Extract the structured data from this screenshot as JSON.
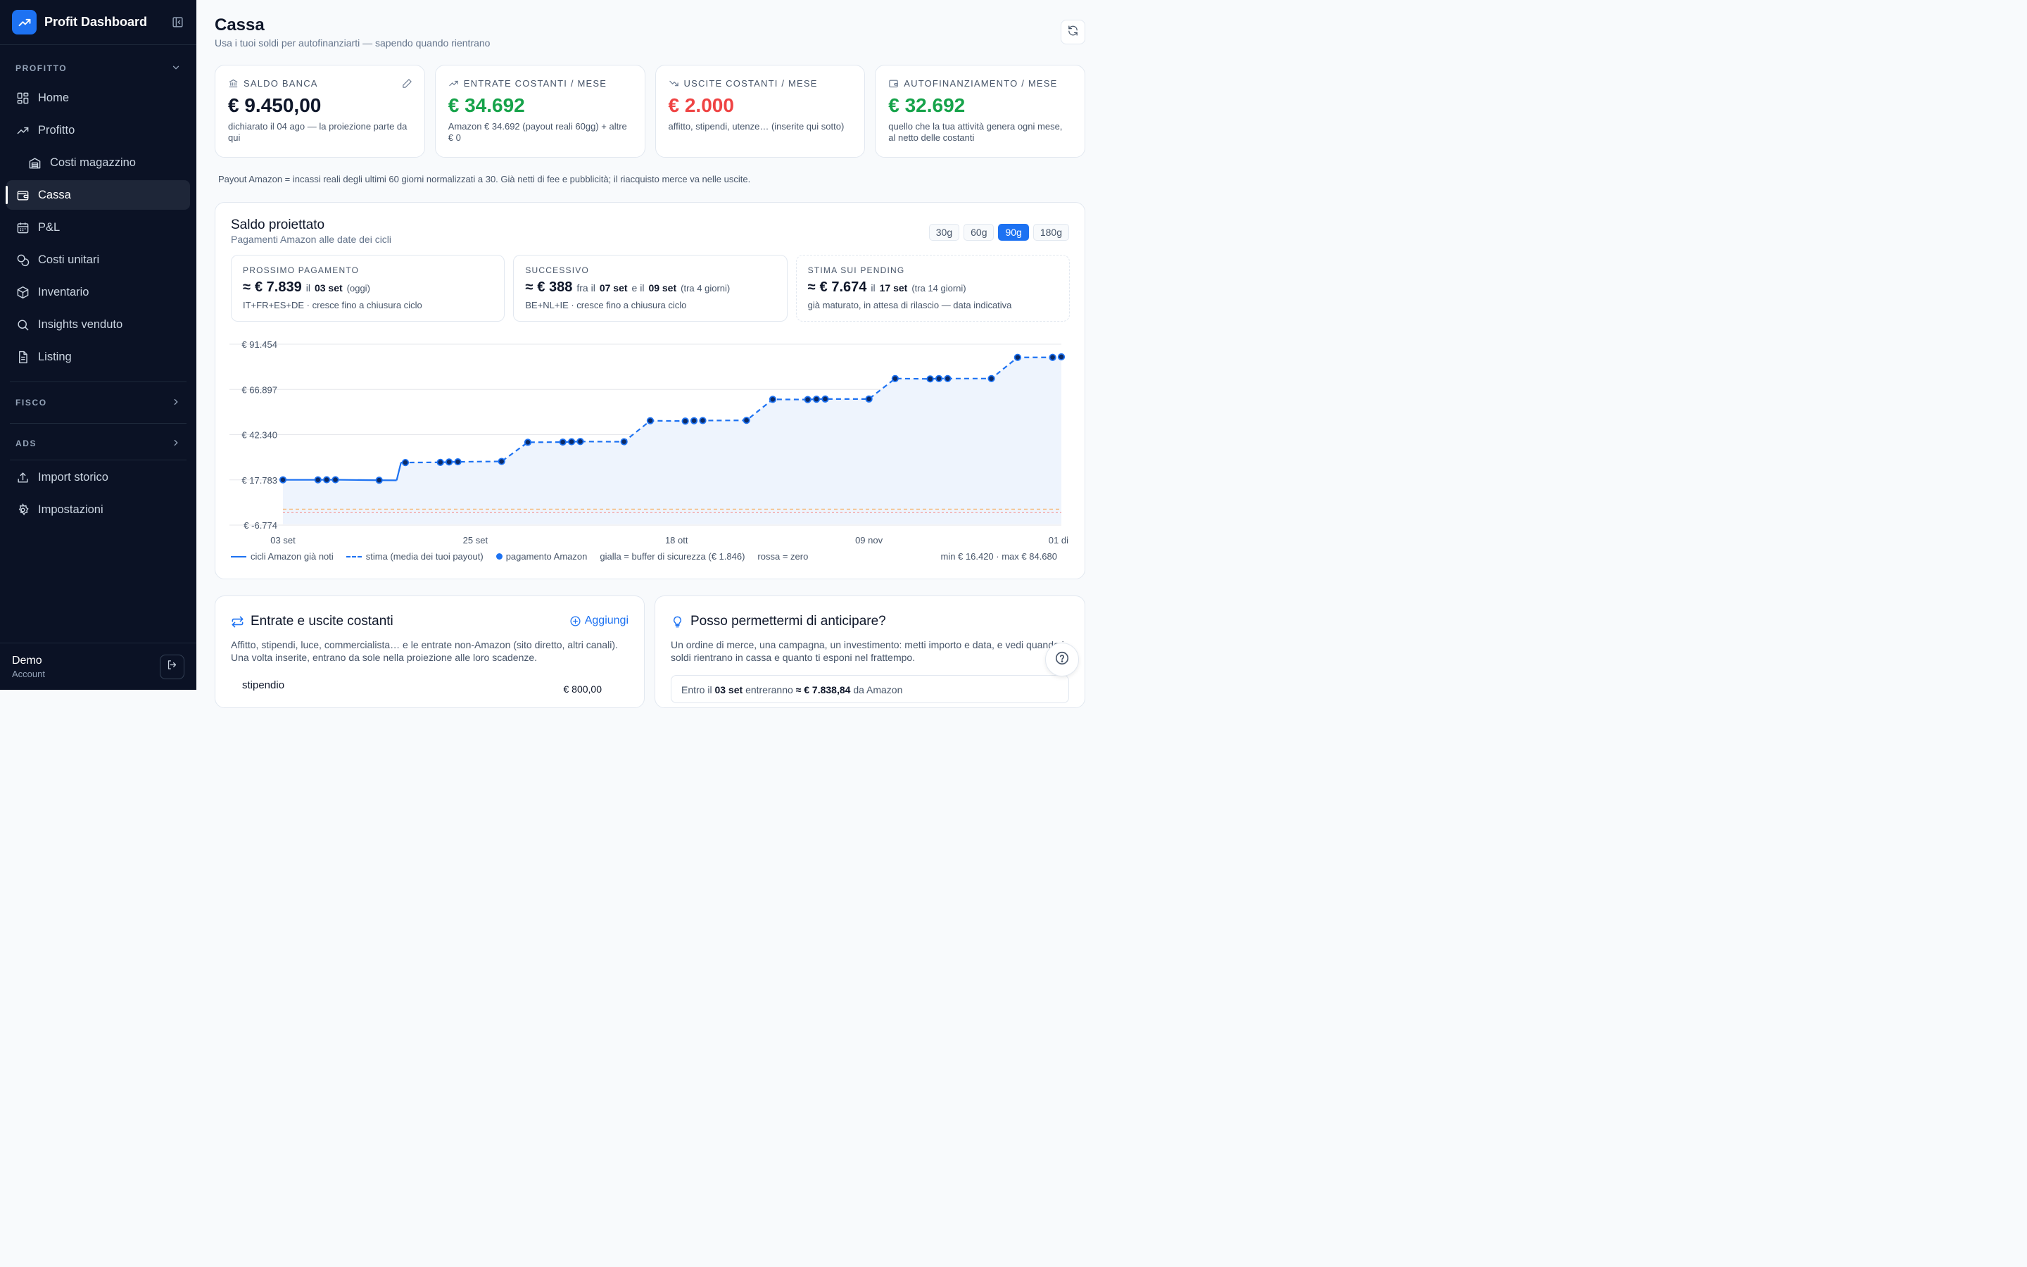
{
  "brand": {
    "title": "Profit Dashboard"
  },
  "sidebar": {
    "sections": [
      {
        "label": "PROFITTO"
      },
      {
        "label": "FISCO"
      },
      {
        "label": "ADS"
      }
    ],
    "items": [
      {
        "label": "Home",
        "icon": "grid-icon"
      },
      {
        "label": "Profitto",
        "icon": "trend-up-icon"
      },
      {
        "label": "Costi magazzino",
        "icon": "warehouse-icon"
      },
      {
        "label": "Cassa",
        "icon": "wallet-icon"
      },
      {
        "label": "P&L",
        "icon": "calendar-icon"
      },
      {
        "label": "Costi unitari",
        "icon": "coins-icon"
      },
      {
        "label": "Inventario",
        "icon": "box-icon"
      },
      {
        "label": "Insights venduto",
        "icon": "search-icon"
      },
      {
        "label": "Listing",
        "icon": "document-icon"
      }
    ],
    "bottom_items": [
      {
        "label": "Import storico",
        "icon": "upload-icon"
      },
      {
        "label": "Impostazioni",
        "icon": "gear-icon"
      }
    ],
    "account": {
      "name": "Demo",
      "role": "Account"
    }
  },
  "page": {
    "title": "Cassa",
    "subtitle": "Usa i tuoi soldi per autofinanziarti — sapendo quando rientrano"
  },
  "kpis": [
    {
      "label": "SALDO BANCA",
      "value": "€ 9.450,00",
      "note": "dichiarato il 04 ago — la proiezione parte da qui",
      "color": "#0f172a"
    },
    {
      "label": "ENTRATE COSTANTI / MESE",
      "value": "€ 34.692",
      "note": "Amazon € 34.692 (payout reali 60gg) + altre € 0",
      "color": "#16a34a"
    },
    {
      "label": "USCITE COSTANTI / MESE",
      "value": "€ 2.000",
      "note": "affitto, stipendi, utenze… (inserite qui sotto)",
      "color": "#ef4444"
    },
    {
      "label": "AUTOFINANZIAMENTO / MESE",
      "value": "€ 32.692",
      "note": "quello che la tua attività genera ogni mese, al netto delle costanti",
      "color": "#16a34a"
    }
  ],
  "footnote": "Payout Amazon = incassi reali degli ultimi 60 giorni normalizzati a 30. Già netti di fee e pubblicità; il riacquisto merce va nelle uscite.",
  "projection": {
    "title": "Saldo proiettato",
    "subtitle": "Pagamenti Amazon alle date dei cicli",
    "ranges": [
      "30g",
      "60g",
      "90g",
      "180g"
    ],
    "active_range": "90g",
    "next_payment": {
      "label": "PROSSIMO PAGAMENTO",
      "approx": "≈",
      "amount": "€ 7.839",
      "prefix": "il",
      "date": "03 set",
      "extra": "(oggi)",
      "note": "IT+FR+ES+DE · cresce fino a chiusura ciclo"
    },
    "following": {
      "label": "SUCCESSIVO",
      "approx": "≈",
      "amount": "€ 388",
      "prefix": "fra il",
      "date1": "07 set",
      "mid": "e il",
      "date2": "09 set",
      "extra": "(tra 4 giorni)",
      "note": "BE+NL+IE · cresce fino a chiusura ciclo"
    },
    "pending": {
      "label": "STIMA SUI PENDING",
      "approx": "≈",
      "amount": "€ 7.674",
      "prefix": "il",
      "date": "17 set",
      "extra": "(tra 14 giorni)",
      "note": "già maturato, in attesa di rilascio — data indicativa"
    },
    "legend": {
      "solid": "cicli Amazon già noti",
      "dashed": "stima (media dei tuoi payout)",
      "dot": "pagamento Amazon",
      "yellow": "gialla = buffer di sicurezza (€ 1.846)",
      "red": "rossa = zero",
      "minmax": "min € 16.420 · max € 84.680"
    }
  },
  "chart_data": {
    "type": "line",
    "x_axis": "days from 03 set",
    "xlim": [
      0,
      89
    ],
    "ylim": [
      -6774,
      91454
    ],
    "ytick_labels": [
      "€ 91.454",
      "€ 66.897",
      "€ 42.340",
      "€ 17.783",
      "€ -6.774"
    ],
    "yticks": [
      91454,
      66897,
      42340,
      17783,
      -6774
    ],
    "xtick_labels": [
      "03 set",
      "25 set",
      "18 ott",
      "09 nov",
      "01 di"
    ],
    "xticks": [
      0,
      22,
      45,
      67,
      89
    ],
    "buffer": 1846,
    "zero": 0,
    "series": [
      {
        "style": "solid",
        "points": [
          [
            0,
            17800
          ],
          [
            4,
            17800
          ],
          [
            5,
            17850
          ],
          [
            6,
            17850
          ],
          [
            11,
            17600
          ],
          [
            13,
            17550
          ]
        ]
      },
      {
        "style": "dashed",
        "points": [
          [
            13.5,
            27200
          ],
          [
            18,
            27300
          ],
          [
            19,
            27500
          ],
          [
            20,
            27600
          ],
          [
            25,
            27800
          ],
          [
            28,
            38200
          ],
          [
            32,
            38300
          ],
          [
            33,
            38500
          ],
          [
            34,
            38600
          ],
          [
            39,
            38500
          ],
          [
            42,
            49900
          ],
          [
            46,
            49700
          ],
          [
            47,
            49900
          ],
          [
            48,
            50000
          ],
          [
            53,
            50100
          ],
          [
            56,
            61500
          ],
          [
            60,
            61400
          ],
          [
            61,
            61600
          ],
          [
            62,
            61700
          ],
          [
            67,
            61700
          ],
          [
            70,
            72800
          ],
          [
            74,
            72600
          ],
          [
            75,
            72800
          ],
          [
            76,
            72800
          ],
          [
            81,
            72800
          ],
          [
            84,
            84300
          ],
          [
            88,
            84300
          ],
          [
            89,
            84600
          ]
        ]
      }
    ],
    "payments": [
      [
        0,
        17800
      ],
      [
        4,
        17800
      ],
      [
        5,
        17850
      ],
      [
        6,
        17850
      ],
      [
        11,
        17600
      ],
      [
        14,
        27200
      ],
      [
        18,
        27300
      ],
      [
        19,
        27500
      ],
      [
        20,
        27600
      ],
      [
        25,
        27800
      ],
      [
        28,
        38200
      ],
      [
        32,
        38300
      ],
      [
        33,
        38500
      ],
      [
        34,
        38600
      ],
      [
        39,
        38500
      ],
      [
        42,
        49900
      ],
      [
        46,
        49700
      ],
      [
        47,
        49900
      ],
      [
        48,
        50000
      ],
      [
        53,
        50100
      ],
      [
        56,
        61500
      ],
      [
        60,
        61400
      ],
      [
        61,
        61600
      ],
      [
        62,
        61700
      ],
      [
        67,
        61700
      ],
      [
        70,
        72800
      ],
      [
        74,
        72600
      ],
      [
        75,
        72800
      ],
      [
        76,
        72800
      ],
      [
        81,
        72800
      ],
      [
        84,
        84300
      ],
      [
        88,
        84300
      ],
      [
        89,
        84600
      ]
    ],
    "colors": {
      "line": "#1d72f2",
      "fill": "#eef4fd",
      "buffer": "#f5b97a",
      "zero": "#f3a0a0",
      "grid": "#e5e7eb"
    }
  },
  "recurring": {
    "title": "Entrate e uscite costanti",
    "add_label": "Aggiungi",
    "description": "Affitto, stipendi, luce, commercialista… e le entrate non-Amazon (sito diretto, altri canali). Una volta inserite, entrano da sole nella proiezione alle loro scadenze.",
    "first_row": "stipendio",
    "first_row_amount": "€ 800,00"
  },
  "anticipate": {
    "title": "Posso permettermi di anticipare?",
    "description": "Un ordine di merce, una campagna, un investimento: metti importo e data, e vedi quando i soldi rientrano in cassa e quanto ti esponi nel frattempo.",
    "info_prefix": "Entro il",
    "info_date": "03 set",
    "info_mid": "entreranno",
    "info_amount": "≈ € 7.838,84",
    "info_suffix": "da Amazon"
  }
}
